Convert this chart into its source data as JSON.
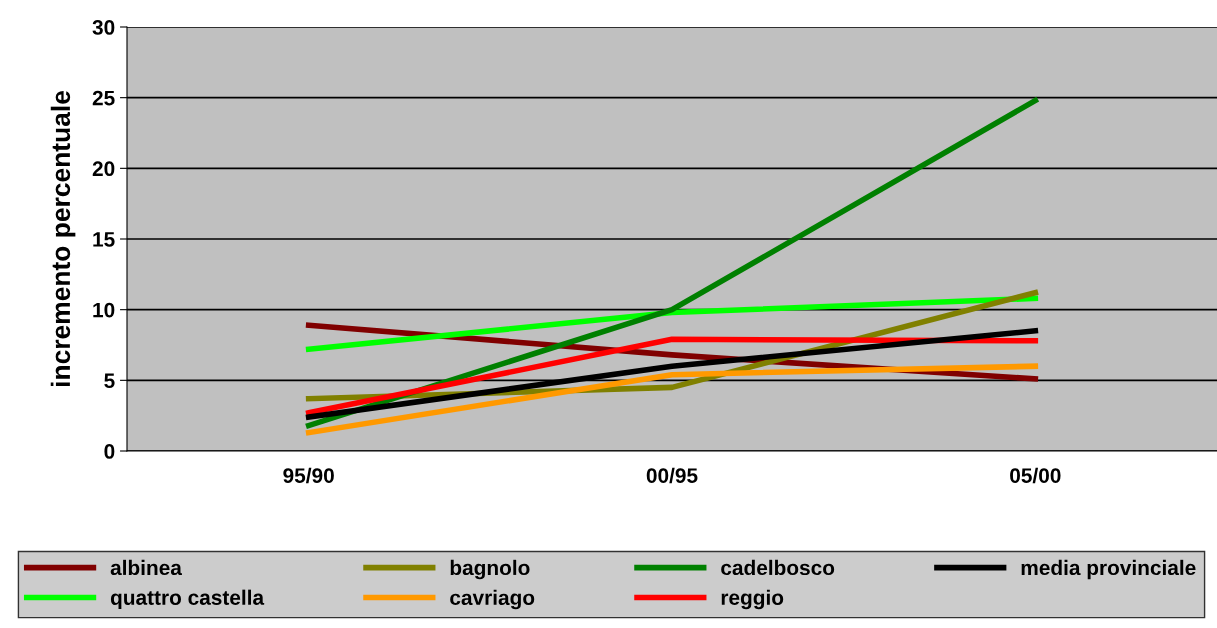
{
  "chart_data": {
    "type": "line",
    "ylabel": "incremento percentuale",
    "categories": [
      "95/90",
      "00/95",
      "05/00"
    ],
    "ylim": [
      0,
      30
    ],
    "yticks": [
      0,
      5,
      10,
      15,
      20,
      25,
      30
    ],
    "grid": "y",
    "legend": "bottom",
    "marker": "none",
    "line_style": "solid",
    "series": [
      {
        "name": "albinea",
        "color": "#800000",
        "values": [
          8.9,
          6.8,
          5.1
        ]
      },
      {
        "name": "quattro castella",
        "color": "#00ff00",
        "values": [
          7.2,
          9.8,
          10.8
        ]
      },
      {
        "name": "bagnolo",
        "color": "#808000",
        "values": [
          3.7,
          4.5,
          11.2
        ]
      },
      {
        "name": "cavriago",
        "color": "#ff9900",
        "values": [
          1.3,
          5.4,
          6.0
        ]
      },
      {
        "name": "cadelbosco",
        "color": "#008000",
        "values": [
          1.8,
          10.0,
          24.8
        ]
      },
      {
        "name": "reggio",
        "color": "#ff0000",
        "values": [
          2.7,
          7.9,
          7.8
        ]
      },
      {
        "name": "media provinciale",
        "color": "#000000",
        "values": [
          2.4,
          6.0,
          8.5
        ]
      }
    ]
  }
}
